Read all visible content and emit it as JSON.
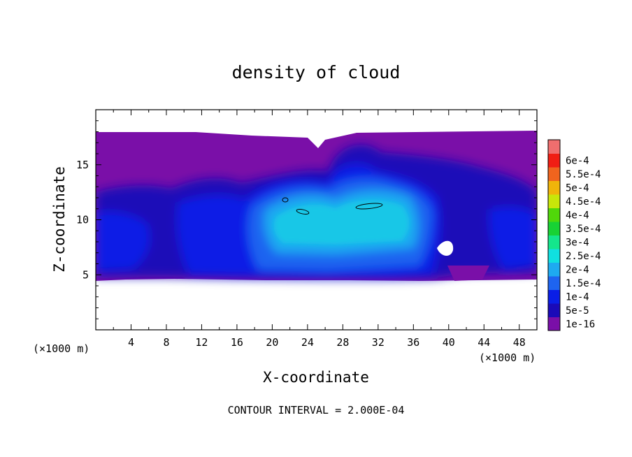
{
  "chart_data": {
    "type": "heatmap",
    "title": "density of cloud",
    "xlabel": "X-coordinate",
    "ylabel": "Z-coordinate",
    "x_unit": "(×1000 m)",
    "y_unit": "(×1000 m)",
    "xlim": [
      0,
      50
    ],
    "ylim": [
      0,
      20
    ],
    "x_ticks": [
      4,
      8,
      12,
      16,
      20,
      24,
      28,
      32,
      36,
      40,
      44,
      48
    ],
    "y_ticks": [
      5,
      10,
      15
    ],
    "colorbar": {
      "labels": [
        "1e-16",
        "5e-5",
        "1e-4",
        "1.5e-4",
        "2e-4",
        "2.5e-4",
        "3e-4",
        "3.5e-4",
        "4e-4",
        "4.5e-4",
        "5e-4",
        "5.5e-4",
        "6e-4"
      ],
      "colors": [
        "#7a0fa8",
        "#1a0ab8",
        "#0a1ee6",
        "#1e64f0",
        "#1eaaf0",
        "#10e0e0",
        "#14e68c",
        "#18d234",
        "#50d80a",
        "#c8e60a",
        "#f0b40a",
        "#f0641e",
        "#f01e14",
        "#f06e6e"
      ]
    },
    "footer": "CONTOUR INTERVAL = 2.000E-04"
  }
}
